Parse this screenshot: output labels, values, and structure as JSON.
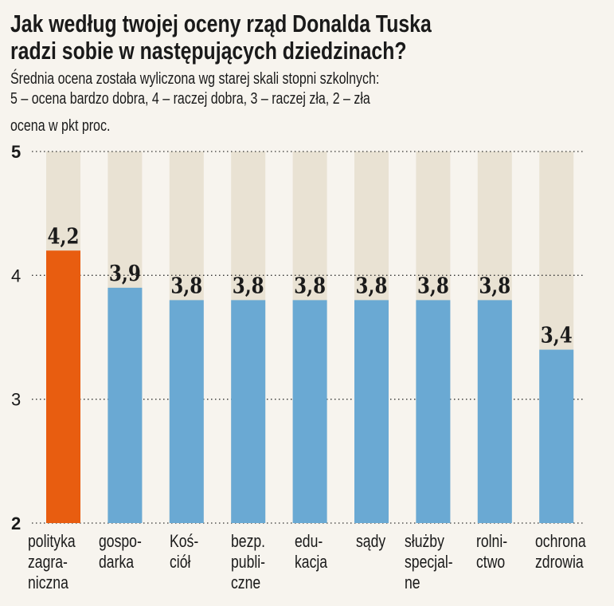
{
  "title": [
    "Jak według twojej oceny rząd Donalda Tuska",
    "radzi sobie w następujących dziedzinach?"
  ],
  "subtitle": [
    "Średnia ocena została wyliczona wg starej skali stopni szkolnych:",
    "5 – ocena bardzo dobra, 4 – raczej dobra, 3 – raczej zła, 2 – zła"
  ],
  "unit_label": "ocena w pkt proc.",
  "chart_data": {
    "type": "bar",
    "categories": [
      "polityka zagra-niczna",
      "gospo-darka",
      "Koś-ciół",
      "bezp. publi-czne",
      "edu-kacja",
      "sądy",
      "służby specjal-ne",
      "rolni-ctwo",
      "ochrona zdrowia"
    ],
    "category_lines": [
      [
        "polityka",
        "zagra-",
        "niczna"
      ],
      [
        "gospo-",
        "darka"
      ],
      [
        "Koś-",
        "ciół"
      ],
      [
        "bezp.",
        "publi-",
        "czne"
      ],
      [
        "edu-",
        "kacja"
      ],
      [
        "sądy"
      ],
      [
        "służby",
        "specjal-",
        "ne"
      ],
      [
        "rolni-",
        "ctwo"
      ],
      [
        "ochrona",
        "zdrowia"
      ]
    ],
    "values": [
      4.2,
      3.9,
      3.8,
      3.8,
      3.8,
      3.8,
      3.8,
      3.8,
      3.4
    ],
    "value_labels": [
      "4,2",
      "3,9",
      "3,8",
      "3,8",
      "3,8",
      "3,8",
      "3,8",
      "3,8",
      "3,4"
    ],
    "ylim": [
      2,
      5
    ],
    "yticks": [
      "2",
      "3",
      "4",
      "5"
    ],
    "grid": true,
    "colors": {
      "highlight": "#e85d10",
      "bar": "#6aa9d3",
      "track": "#e9e2d3",
      "background": "#f7f4ee"
    },
    "highlight_index": 0
  }
}
